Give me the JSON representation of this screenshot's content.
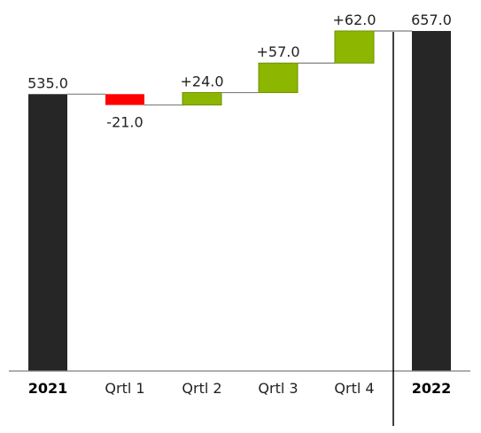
{
  "chart_data": {
    "type": "waterfall",
    "title": "",
    "xlabel": "",
    "ylabel": "",
    "ylim": [
      0,
      700
    ],
    "grid": false,
    "legend": "none",
    "categories": [
      "2021",
      "Qrtl 1",
      "Qrtl 2",
      "Qrtl 3",
      "Qrtl 4",
      "2022"
    ],
    "items": [
      {
        "category": "2021",
        "kind": "total",
        "value": 535.0,
        "label": "535.0"
      },
      {
        "category": "Qrtl 1",
        "kind": "delta",
        "value": -21.0,
        "label": "-21.0"
      },
      {
        "category": "Qrtl 2",
        "kind": "delta",
        "value": 24.0,
        "label": "+24.0"
      },
      {
        "category": "Qrtl 3",
        "kind": "delta",
        "value": 57.0,
        "label": "+57.0"
      },
      {
        "category": "Qrtl 4",
        "kind": "delta",
        "value": 62.0,
        "label": "+62.0"
      },
      {
        "category": "2022",
        "kind": "total",
        "value": 657.0,
        "label": "657.0"
      }
    ],
    "colors": {
      "total": "#262626",
      "increase": "#8db600",
      "increase_border": "#6f9000",
      "decrease": "#ff0000",
      "connector": "#7f7f7f",
      "axis": "#7f7f7f",
      "separator": "#000000"
    }
  }
}
